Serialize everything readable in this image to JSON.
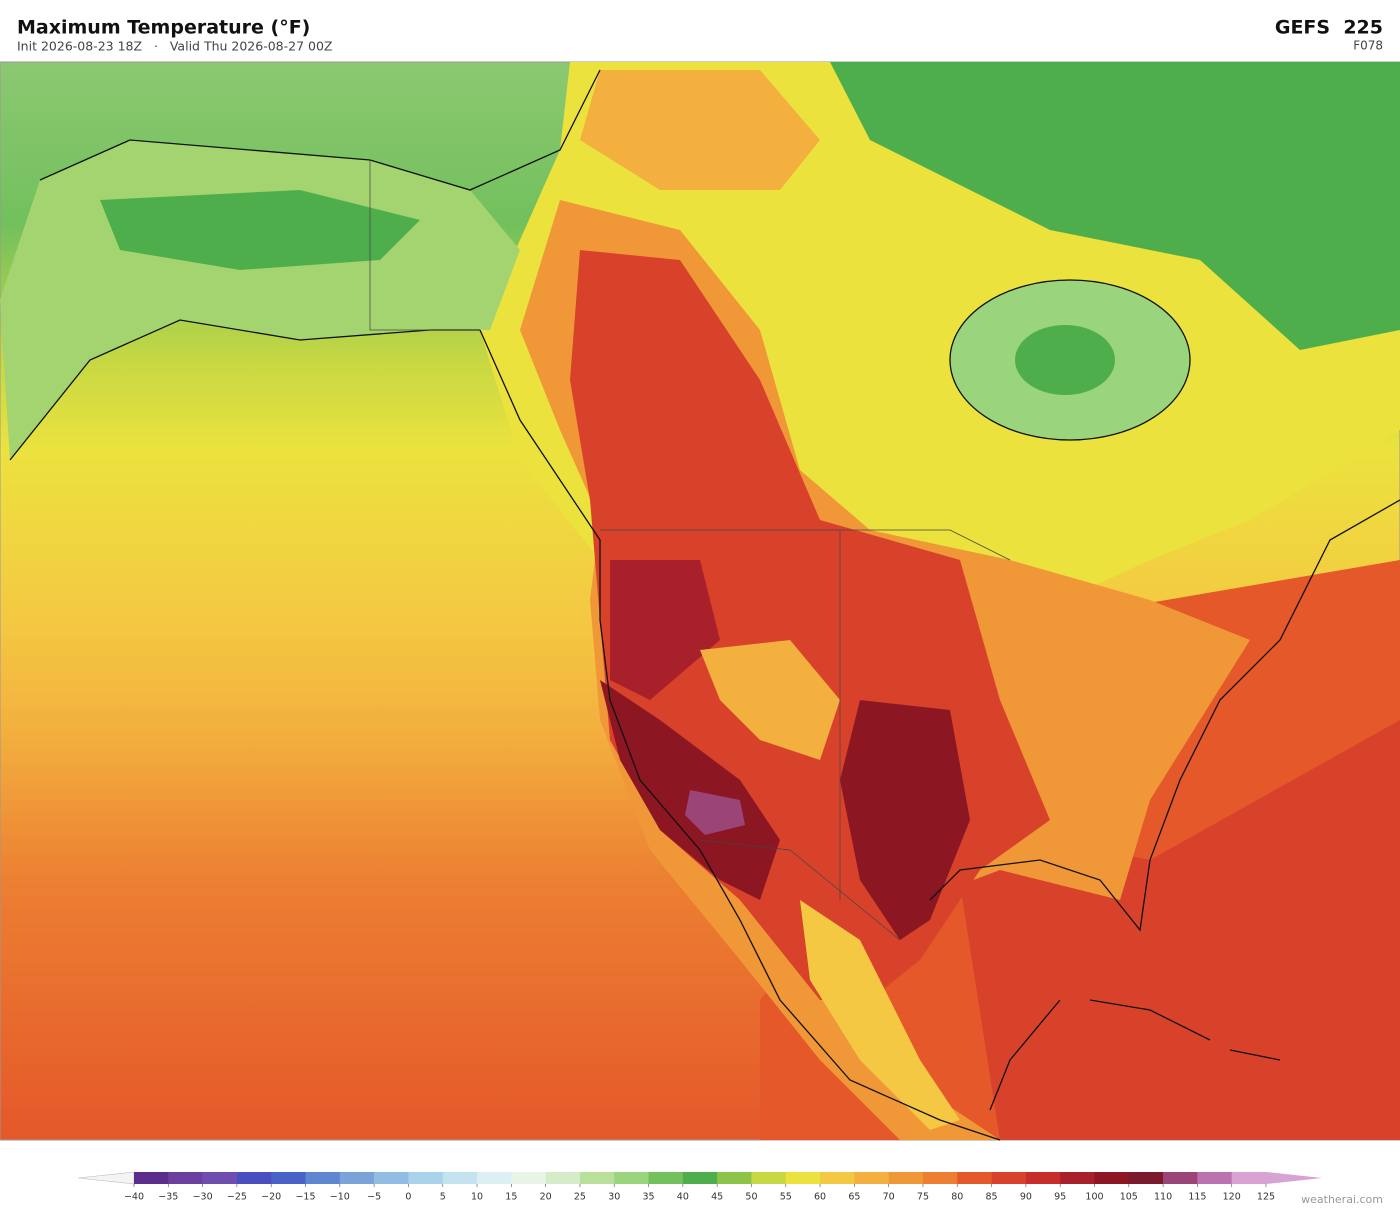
{
  "header": {
    "title": "Maximum Temperature  (°F)",
    "subtitle": "Init 2026-08-23 18Z   ·   Valid Thu 2026-08-27 00Z",
    "model": "GEFS  225",
    "forecast_hour": "F078"
  },
  "colorbar": {
    "ticks": [
      {
        "value": -40,
        "label": "−40"
      },
      {
        "value": -35,
        "label": "−35"
      },
      {
        "value": -30,
        "label": "−30"
      },
      {
        "value": -25,
        "label": "−25"
      },
      {
        "value": -20,
        "label": "−20"
      },
      {
        "value": -15,
        "label": "−15"
      },
      {
        "value": -10,
        "label": "−10"
      },
      {
        "value": -5,
        "label": "−5"
      },
      0,
      5,
      10,
      15,
      20,
      25,
      30,
      35,
      40,
      45,
      50,
      55,
      60,
      65,
      70,
      75,
      80,
      85,
      90,
      95,
      100,
      105,
      110,
      115,
      120,
      125
    ],
    "colors": [
      "#5a2d8c",
      "#6b3fa0",
      "#6e4cb0",
      "#4a4fc0",
      "#4a62c8",
      "#5f86d0",
      "#79a3d9",
      "#91bde2",
      "#a8d3ea",
      "#c4e3f0",
      "#dcf0f3",
      "#e8f5e6",
      "#d4ecc8",
      "#b8e09a",
      "#9ad47c",
      "#72c05e",
      "#4fae4c",
      "#8cc44a",
      "#c8d843",
      "#ece23e",
      "#f4c842",
      "#f3b03e",
      "#f09838",
      "#ec7f32",
      "#e4582a",
      "#d9422a",
      "#c52e2a",
      "#a8202a",
      "#8c1622",
      "#7a1a2c",
      "#9a4478",
      "#bc72ae",
      "#d8a2d2"
    ],
    "under_color": "#f4f4f4",
    "over_color": "#d8a2d2"
  },
  "footer": {
    "credit": "weatherai.com"
  }
}
